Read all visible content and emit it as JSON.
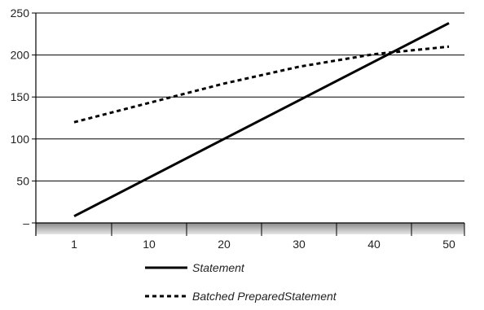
{
  "chart_data": {
    "type": "line",
    "title": "",
    "xlabel": "",
    "ylabel": "",
    "x_ticks": [
      "1",
      "10",
      "20",
      "30",
      "40",
      "50"
    ],
    "y_ticks": [
      "–",
      "50",
      "100",
      "150",
      "200",
      "250"
    ],
    "ylim": [
      0,
      250
    ],
    "grid": "horizontal",
    "legend_position": "bottom",
    "series": [
      {
        "name": "Statement",
        "style": "solid",
        "color": "#000000",
        "points": [
          [
            1,
            8
          ],
          [
            50,
            238
          ]
        ]
      },
      {
        "name": "Batched PreparedStatement",
        "style": "dotted",
        "color": "#000000",
        "points": [
          [
            1,
            120
          ],
          [
            10,
            143
          ],
          [
            20,
            166
          ],
          [
            30,
            186
          ],
          [
            40,
            201
          ],
          [
            50,
            210
          ]
        ]
      }
    ]
  }
}
